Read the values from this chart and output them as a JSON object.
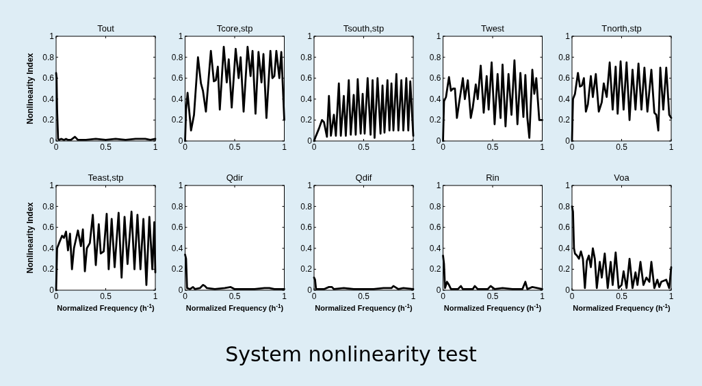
{
  "chart_data": [
    {
      "type": "line",
      "title": "Tout",
      "ylabel": "Nonlinearity Index",
      "annotations": [
        "System nonlinearity test"
      ],
      "color": "#000000",
      "xlim": [
        0,
        1
      ],
      "ylim": [
        0,
        1
      ],
      "xticks": [
        0,
        0.5,
        1
      ],
      "yticks": [
        0,
        0.2,
        0.4,
        0.6,
        0.8,
        1
      ],
      "x": [
        0,
        0.005,
        0.01,
        0.02,
        0.03,
        0.05,
        0.08,
        0.1,
        0.12,
        0.15,
        0.19,
        0.22,
        0.3,
        0.4,
        0.5,
        0.6,
        0.7,
        0.8,
        0.9,
        0.95,
        1
      ],
      "values": [
        0.65,
        0.6,
        0.3,
        0.02,
        0.01,
        0.02,
        0.01,
        0.02,
        0.01,
        0.01,
        0.04,
        0.01,
        0.01,
        0.02,
        0.01,
        0.02,
        0.01,
        0.02,
        0.02,
        0.01,
        0.02
      ]
    },
    {
      "type": "line",
      "title": "Tcore,stp",
      "color": "#000000",
      "xlim": [
        0,
        1
      ],
      "ylim": [
        0,
        1
      ],
      "xticks": [
        0,
        0.5,
        1
      ],
      "yticks": [
        0,
        0.2,
        0.4,
        0.6,
        0.8,
        1
      ],
      "x": [
        0,
        0.01,
        0.025,
        0.06,
        0.09,
        0.13,
        0.16,
        0.18,
        0.21,
        0.26,
        0.29,
        0.31,
        0.33,
        0.35,
        0.39,
        0.42,
        0.44,
        0.47,
        0.51,
        0.54,
        0.56,
        0.59,
        0.63,
        0.66,
        0.68,
        0.71,
        0.74,
        0.77,
        0.79,
        0.82,
        0.86,
        0.88,
        0.9,
        0.92,
        0.95,
        0.97,
        1
      ],
      "values": [
        0,
        0.3,
        0.46,
        0.1,
        0.25,
        0.8,
        0.55,
        0.48,
        0.28,
        0.86,
        0.57,
        0.58,
        0.71,
        0.3,
        0.9,
        0.56,
        0.78,
        0.32,
        0.88,
        0.6,
        0.8,
        0.28,
        0.9,
        0.62,
        0.86,
        0.26,
        0.85,
        0.56,
        0.83,
        0.22,
        0.86,
        0.6,
        0.62,
        0.86,
        0.6,
        0.85,
        0.2
      ]
    },
    {
      "type": "line",
      "title": "Tsouth,stp",
      "color": "#000000",
      "xlim": [
        0,
        1
      ],
      "ylim": [
        0,
        1
      ],
      "xticks": [
        0,
        0.5,
        1
      ],
      "yticks": [
        0,
        0.2,
        0.4,
        0.6,
        0.8,
        1
      ],
      "x": [
        0,
        0.02,
        0.05,
        0.08,
        0.1,
        0.13,
        0.15,
        0.17,
        0.2,
        0.22,
        0.25,
        0.27,
        0.3,
        0.32,
        0.35,
        0.37,
        0.4,
        0.42,
        0.44,
        0.47,
        0.49,
        0.51,
        0.54,
        0.57,
        0.59,
        0.61,
        0.64,
        0.67,
        0.69,
        0.71,
        0.74,
        0.76,
        0.78,
        0.8,
        0.83,
        0.85,
        0.88,
        0.9,
        0.93,
        0.95,
        0.97,
        1
      ],
      "values": [
        0,
        0.05,
        0.12,
        0.2,
        0.18,
        0.04,
        0.43,
        0.05,
        0.25,
        0.05,
        0.55,
        0.05,
        0.43,
        0.05,
        0.58,
        0.06,
        0.44,
        0.06,
        0.59,
        0.07,
        0.45,
        0.07,
        0.6,
        0.06,
        0.58,
        0.03,
        0.6,
        0.07,
        0.53,
        0.08,
        0.58,
        0.1,
        0.55,
        0.1,
        0.64,
        0.1,
        0.58,
        0.1,
        0.6,
        0.1,
        0.57,
        0.05
      ]
    },
    {
      "type": "line",
      "title": "Twest",
      "color": "#000000",
      "xlim": [
        0,
        1
      ],
      "ylim": [
        0,
        1
      ],
      "xticks": [
        0,
        0.5,
        1
      ],
      "yticks": [
        0,
        0.2,
        0.4,
        0.6,
        0.8,
        1
      ],
      "x": [
        0,
        0.01,
        0.03,
        0.06,
        0.08,
        0.1,
        0.12,
        0.14,
        0.16,
        0.2,
        0.22,
        0.25,
        0.28,
        0.3,
        0.33,
        0.35,
        0.38,
        0.41,
        0.44,
        0.46,
        0.49,
        0.52,
        0.55,
        0.58,
        0.6,
        0.63,
        0.66,
        0.69,
        0.72,
        0.75,
        0.78,
        0.81,
        0.83,
        0.85,
        0.87,
        0.9,
        0.92,
        0.94,
        0.97,
        1
      ],
      "values": [
        0,
        0.38,
        0.42,
        0.61,
        0.48,
        0.5,
        0.5,
        0.22,
        0.35,
        0.6,
        0.4,
        0.58,
        0.22,
        0.32,
        0.54,
        0.4,
        0.72,
        0.27,
        0.62,
        0.3,
        0.75,
        0.16,
        0.64,
        0.22,
        0.73,
        0.14,
        0.64,
        0.25,
        0.77,
        0.16,
        0.65,
        0.23,
        0.63,
        0.22,
        0.03,
        0.68,
        0.45,
        0.6,
        0.2,
        0.2
      ]
    },
    {
      "type": "line",
      "title": "Tnorth,stp",
      "color": "#000000",
      "xlim": [
        0,
        1
      ],
      "ylim": [
        0,
        1
      ],
      "xticks": [
        0,
        0.5,
        1
      ],
      "yticks": [
        0,
        0.2,
        0.4,
        0.6,
        0.8,
        1
      ],
      "x": [
        0,
        0.01,
        0.03,
        0.06,
        0.08,
        0.1,
        0.12,
        0.14,
        0.16,
        0.19,
        0.21,
        0.24,
        0.27,
        0.3,
        0.32,
        0.35,
        0.38,
        0.41,
        0.44,
        0.46,
        0.49,
        0.52,
        0.55,
        0.58,
        0.61,
        0.64,
        0.67,
        0.7,
        0.73,
        0.76,
        0.8,
        0.83,
        0.85,
        0.87,
        0.89,
        0.92,
        0.95,
        0.98,
        1
      ],
      "values": [
        0,
        0.4,
        0.45,
        0.65,
        0.52,
        0.53,
        0.6,
        0.28,
        0.35,
        0.62,
        0.42,
        0.64,
        0.28,
        0.37,
        0.55,
        0.42,
        0.75,
        0.3,
        0.71,
        0.26,
        0.76,
        0.3,
        0.75,
        0.2,
        0.68,
        0.3,
        0.74,
        0.3,
        0.7,
        0.28,
        0.68,
        0.27,
        0.25,
        0.1,
        0.7,
        0.3,
        0.7,
        0.25,
        0.22
      ]
    },
    {
      "type": "line",
      "title": "Teast,stp",
      "ylabel": "Nonlinearity Index",
      "xlabel": "Normalized Frequency (h$^{-1}$)",
      "color": "#000000",
      "xlim": [
        0,
        1
      ],
      "ylim": [
        0,
        1
      ],
      "xticks": [
        0,
        0.5,
        1
      ],
      "yticks": [
        0,
        0.2,
        0.4,
        0.6,
        0.8,
        1
      ],
      "x": [
        0,
        0.01,
        0.03,
        0.06,
        0.08,
        0.1,
        0.12,
        0.14,
        0.16,
        0.18,
        0.22,
        0.25,
        0.27,
        0.29,
        0.31,
        0.34,
        0.37,
        0.4,
        0.43,
        0.45,
        0.48,
        0.51,
        0.53,
        0.56,
        0.59,
        0.63,
        0.66,
        0.69,
        0.72,
        0.76,
        0.79,
        0.82,
        0.85,
        0.88,
        0.91,
        0.94,
        0.97,
        0.99,
        1
      ],
      "values": [
        0,
        0.4,
        0.45,
        0.52,
        0.5,
        0.56,
        0.38,
        0.54,
        0.2,
        0.4,
        0.57,
        0.42,
        0.58,
        0.18,
        0.4,
        0.45,
        0.72,
        0.24,
        0.63,
        0.35,
        0.37,
        0.73,
        0.2,
        0.68,
        0.22,
        0.74,
        0.12,
        0.7,
        0.25,
        0.75,
        0.2,
        0.72,
        0.2,
        0.68,
        0.05,
        0.7,
        0.2,
        0.65,
        0.17
      ]
    },
    {
      "type": "line",
      "title": "Qdir",
      "xlabel": "Normalized Frequency (h$^{-1}$)",
      "color": "#000000",
      "xlim": [
        0,
        1
      ],
      "ylim": [
        0,
        1
      ],
      "xticks": [
        0,
        0.5,
        1
      ],
      "yticks": [
        0,
        0.2,
        0.4,
        0.6,
        0.8,
        1
      ],
      "x": [
        0,
        0.01,
        0.02,
        0.05,
        0.08,
        0.1,
        0.15,
        0.18,
        0.2,
        0.22,
        0.3,
        0.4,
        0.46,
        0.5,
        0.6,
        0.7,
        0.8,
        0.85,
        0.9,
        1
      ],
      "values": [
        0.34,
        0.3,
        0.02,
        0.01,
        0.03,
        0.01,
        0.02,
        0.05,
        0.04,
        0.02,
        0.01,
        0.02,
        0.03,
        0.01,
        0.01,
        0.01,
        0.02,
        0.02,
        0.01,
        0.01
      ]
    },
    {
      "type": "line",
      "title": "Qdif",
      "xlabel": "Normalized Frequency (h$^{-1}$)",
      "color": "#000000",
      "xlim": [
        0,
        1
      ],
      "ylim": [
        0,
        1
      ],
      "xticks": [
        0,
        0.5,
        1
      ],
      "yticks": [
        0,
        0.2,
        0.4,
        0.6,
        0.8,
        1
      ],
      "x": [
        0,
        0.01,
        0.02,
        0.1,
        0.15,
        0.18,
        0.2,
        0.3,
        0.4,
        0.5,
        0.6,
        0.7,
        0.78,
        0.8,
        0.85,
        0.9,
        1
      ],
      "values": [
        0.12,
        0.1,
        0.01,
        0.01,
        0.03,
        0.03,
        0.01,
        0.02,
        0.01,
        0.01,
        0.01,
        0.02,
        0.02,
        0.04,
        0.01,
        0.02,
        0.01
      ]
    },
    {
      "type": "line",
      "title": "Rin",
      "xlabel": "Normalized Frequency (h$^{-1}$)",
      "color": "#000000",
      "xlim": [
        0,
        1
      ],
      "ylim": [
        0,
        1
      ],
      "xticks": [
        0,
        0.5,
        1
      ],
      "yticks": [
        0,
        0.2,
        0.4,
        0.6,
        0.8,
        1
      ],
      "x": [
        0,
        0.01,
        0.02,
        0.04,
        0.06,
        0.08,
        0.15,
        0.18,
        0.2,
        0.3,
        0.32,
        0.35,
        0.45,
        0.48,
        0.52,
        0.6,
        0.7,
        0.8,
        0.83,
        0.85,
        0.9,
        1
      ],
      "values": [
        0.33,
        0.25,
        0.02,
        0.08,
        0.05,
        0.01,
        0.01,
        0.04,
        0.01,
        0.01,
        0.04,
        0.01,
        0.01,
        0.04,
        0.01,
        0.02,
        0.01,
        0.01,
        0.08,
        0.01,
        0.03,
        0.01
      ]
    },
    {
      "type": "line",
      "title": "Voa",
      "xlabel": "Normalized Frequency (h$^{-1}$)",
      "color": "#000000",
      "xlim": [
        0,
        1
      ],
      "ylim": [
        0,
        1
      ],
      "xticks": [
        0,
        0.5,
        1
      ],
      "yticks": [
        0,
        0.2,
        0.4,
        0.6,
        0.8,
        1
      ],
      "x": [
        0,
        0.01,
        0.02,
        0.03,
        0.05,
        0.07,
        0.09,
        0.11,
        0.13,
        0.15,
        0.17,
        0.19,
        0.21,
        0.23,
        0.25,
        0.28,
        0.3,
        0.33,
        0.36,
        0.39,
        0.41,
        0.44,
        0.47,
        0.5,
        0.52,
        0.55,
        0.58,
        0.61,
        0.64,
        0.66,
        0.69,
        0.72,
        0.75,
        0.78,
        0.8,
        0.83,
        0.86,
        0.88,
        0.9,
        0.95,
        0.98,
        1
      ],
      "values": [
        0.8,
        0.75,
        0.4,
        0.35,
        0.33,
        0.3,
        0.37,
        0.3,
        0.02,
        0.28,
        0.33,
        0.22,
        0.4,
        0.3,
        0.02,
        0.27,
        0.12,
        0.35,
        0.02,
        0.27,
        0.05,
        0.36,
        0.02,
        0.05,
        0.18,
        0.02,
        0.3,
        0.02,
        0.17,
        0.05,
        0.27,
        0.05,
        0.12,
        0.08,
        0.27,
        0.02,
        0.1,
        0.03,
        0.08,
        0.1,
        0.02,
        0.22
      ]
    }
  ]
}
